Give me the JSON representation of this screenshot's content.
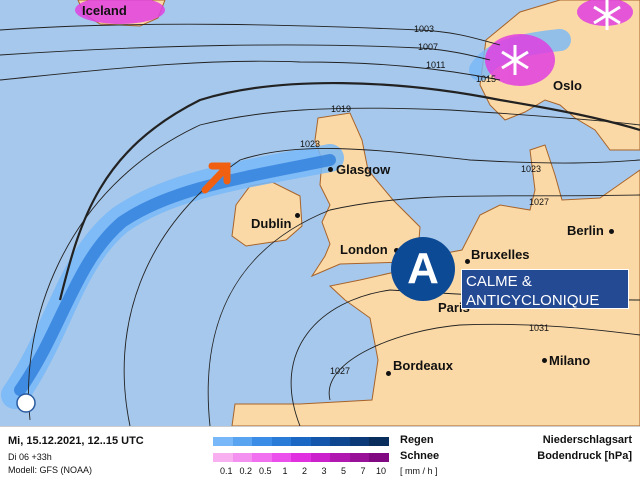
{
  "colors": {
    "sea": "#a6c8ec",
    "land": "#fbd9a6",
    "coast": "#a8642a",
    "rain": "#2f7fdc",
    "snow": "#e040e0",
    "arrow": "#f06010",
    "badge": "#0d4a96"
  },
  "cities": [
    {
      "name": "Iceland"
    },
    {
      "name": "Oslo"
    },
    {
      "name": "Glasgow"
    },
    {
      "name": "Dublin"
    },
    {
      "name": "London"
    },
    {
      "name": "Bruxelles"
    },
    {
      "name": "Berlin"
    },
    {
      "name": "Paris"
    },
    {
      "name": "Bordeaux"
    },
    {
      "name": "Milano"
    }
  ],
  "isobars": [
    "1003",
    "1007",
    "1011",
    "1015",
    "1019",
    "1023",
    "1023",
    "1027",
    "1031",
    "1027"
  ],
  "pressure_system": {
    "letter": "A",
    "line1": "CALME &",
    "line2": "ANTICYCLONIQUE"
  },
  "legend": {
    "date": "Mi, 15.12.2021, 12..15 UTC",
    "run": "Di 06 +33h",
    "model": "Modell: GFS (NOAA)",
    "rain_label": "Regen",
    "snow_label": "Schnee",
    "unit": "[ mm / h ]",
    "ticks": [
      "0.1",
      "0.2",
      "0.5",
      "1",
      "2",
      "3",
      "5",
      "7",
      "10"
    ],
    "rain_colors": [
      "#78b8f8",
      "#58a4f0",
      "#3a8ce6",
      "#2a7ad8",
      "#1b68c4",
      "#1456ac",
      "#0f4690",
      "#0c3a78",
      "#0a2e5c"
    ],
    "snow_colors": [
      "#f8b0f0",
      "#f490f0",
      "#f070f0",
      "#ec50ec",
      "#e030e0",
      "#cc20cc",
      "#b018b0",
      "#981098",
      "#800880"
    ],
    "title1": "Niederschlagsart",
    "title2": "Bodendruck [hPa]"
  }
}
